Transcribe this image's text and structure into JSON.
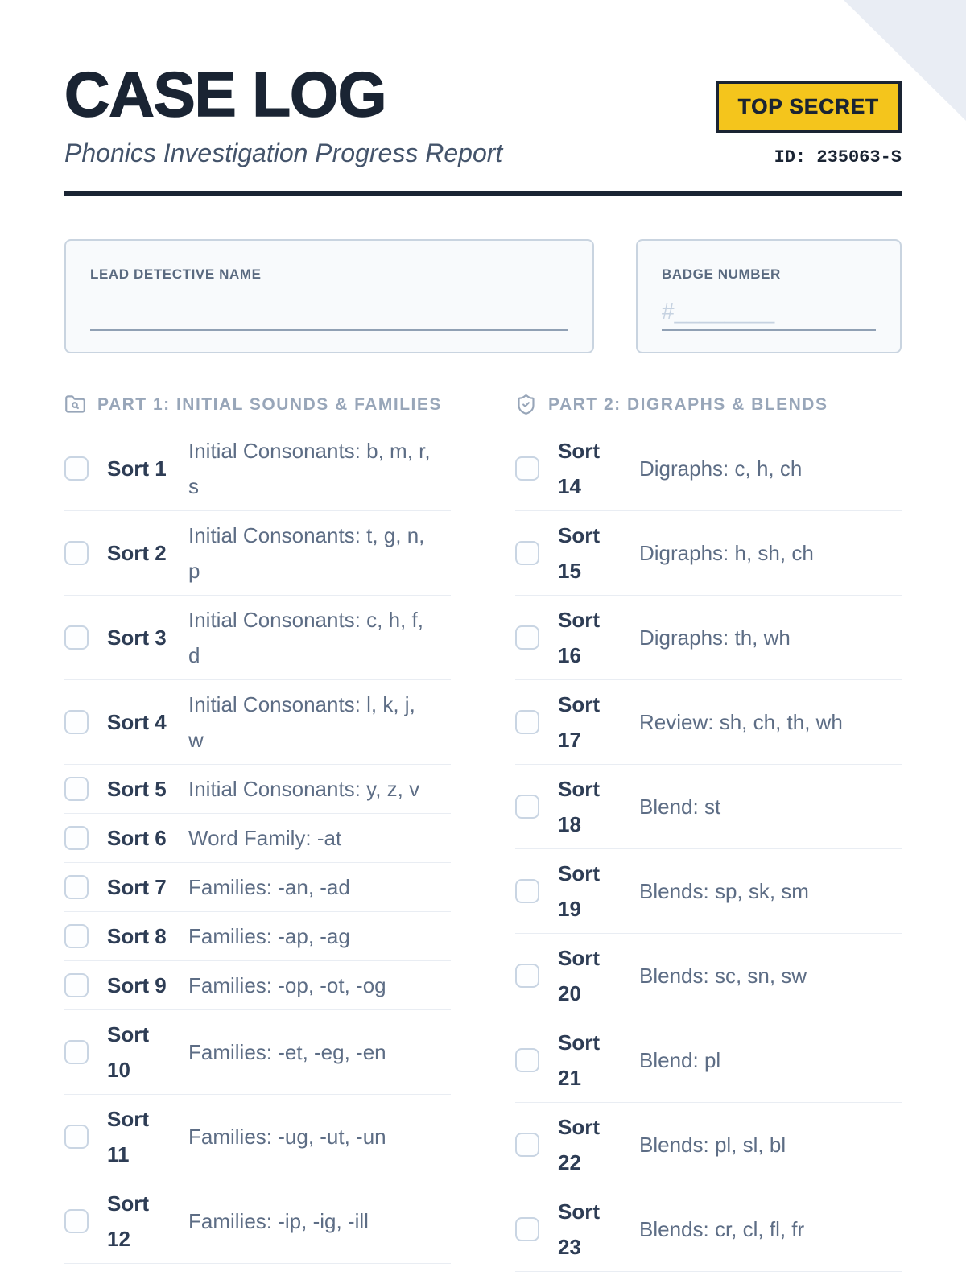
{
  "header": {
    "title": "CASE LOG",
    "subtitle": "Phonics Investigation Progress Report",
    "stamp": "TOP SECRET",
    "case_id": "ID: 235063-S"
  },
  "fields": {
    "detective": {
      "label": "LEAD DETECTIVE NAME"
    },
    "badge": {
      "label": "BADGE NUMBER",
      "placeholder": "#________"
    }
  },
  "sections": [
    {
      "title": "PART 1: INITIAL SOUNDS & FAMILIES",
      "icon": "folder-search-icon",
      "items": [
        {
          "label": "Sort 1",
          "desc": "Initial Consonants: b, m, r, s",
          "checked": false
        },
        {
          "label": "Sort 2",
          "desc": "Initial Consonants: t, g, n, p",
          "checked": false
        },
        {
          "label": "Sort 3",
          "desc": "Initial Consonants: c, h, f, d",
          "checked": false
        },
        {
          "label": "Sort 4",
          "desc": "Initial Consonants: l, k, j, w",
          "checked": false
        },
        {
          "label": "Sort 5",
          "desc": "Initial Consonants: y, z, v",
          "checked": false
        },
        {
          "label": "Sort 6",
          "desc": "Word Family: -at",
          "checked": false
        },
        {
          "label": "Sort 7",
          "desc": "Families: -an, -ad",
          "checked": false
        },
        {
          "label": "Sort 8",
          "desc": "Families: -ap, -ag",
          "checked": false
        },
        {
          "label": "Sort 9",
          "desc": "Families: -op, -ot, -og",
          "checked": false
        },
        {
          "label": "Sort 10",
          "desc": "Families: -et, -eg, -en",
          "checked": false
        },
        {
          "label": "Sort 11",
          "desc": "Families: -ug, -ut, -un",
          "checked": false
        },
        {
          "label": "Sort 12",
          "desc": "Families: -ip, -ig, -ill",
          "checked": false
        }
      ]
    },
    {
      "title": "PART 2: DIGRAPHS & BLENDS",
      "icon": "shield-check-icon",
      "items": [
        {
          "label": "Sort 14",
          "desc": "Digraphs: c, h, ch",
          "checked": false
        },
        {
          "label": "Sort 15",
          "desc": "Digraphs: h, sh, ch",
          "checked": false
        },
        {
          "label": "Sort 16",
          "desc": "Digraphs: th, wh",
          "checked": false
        },
        {
          "label": "Sort 17",
          "desc": "Review: sh, ch, th, wh",
          "checked": false
        },
        {
          "label": "Sort 18",
          "desc": "Blend: st",
          "checked": false
        },
        {
          "label": "Sort 19",
          "desc": "Blends: sp, sk, sm",
          "checked": false
        },
        {
          "label": "Sort 20",
          "desc": "Blends: sc, sn, sw",
          "checked": false
        },
        {
          "label": "Sort 21",
          "desc": "Blend: pl",
          "checked": false
        },
        {
          "label": "Sort 22",
          "desc": "Blends: pl, sl, bl",
          "checked": false
        },
        {
          "label": "Sort 23",
          "desc": "Blends: cr, cl, fl, fr",
          "checked": false
        }
      ]
    }
  ],
  "colors": {
    "ink_navy": "#1a2433",
    "stamp_yellow": "#f4c51c",
    "slate_accent": "#98a6b9",
    "description_text": "#5d6d85"
  }
}
